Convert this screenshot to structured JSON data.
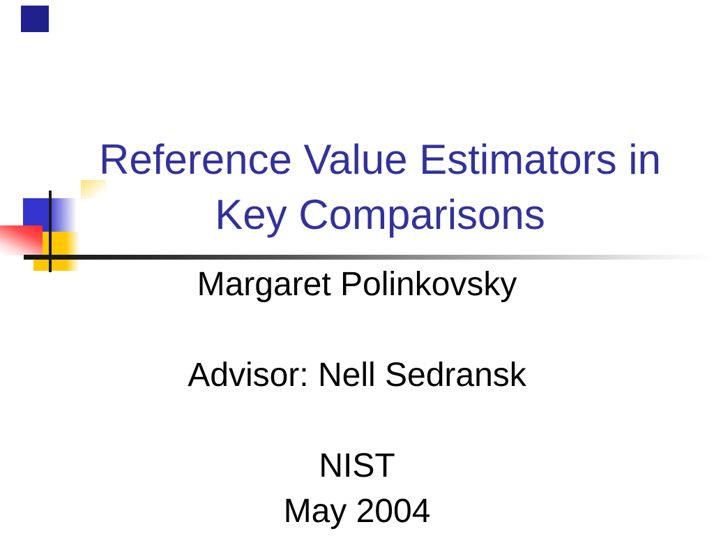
{
  "slide": {
    "title": {
      "line1": "Reference Value Estimators in",
      "line2": "Key Comparisons"
    },
    "subtitle": {
      "lines": [
        "Margaret Polinkovsky",
        "",
        "Advisor: Nell Sedransk",
        "",
        "NIST",
        "May 2004"
      ]
    },
    "colors": {
      "title_text": "#32329A",
      "body_text": "#000000",
      "accent_navy_square": "#21218E",
      "accent_blue_square": "#3434CF",
      "accent_red_square": "#FF2A2A",
      "accent_yellow_square": "#FDC800",
      "line_black": "#1A1A1A"
    }
  }
}
